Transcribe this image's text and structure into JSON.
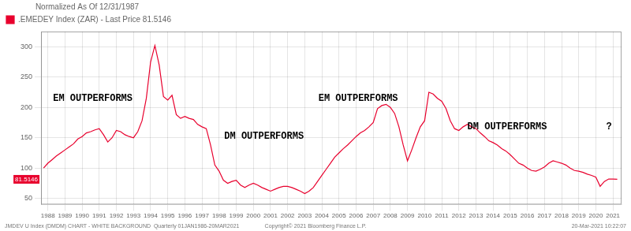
{
  "chart_data": {
    "type": "line",
    "title": "Normalized As Of 12/31/1987",
    "x": [
      1987.75,
      1988.0,
      1988.25,
      1988.5,
      1988.75,
      1989.0,
      1989.25,
      1989.5,
      1989.75,
      1990.0,
      1990.25,
      1990.5,
      1990.75,
      1991.0,
      1991.25,
      1991.5,
      1991.75,
      1992.0,
      1992.25,
      1992.5,
      1992.75,
      1993.0,
      1993.25,
      1993.5,
      1993.75,
      1994.0,
      1994.25,
      1994.5,
      1994.75,
      1995.0,
      1995.25,
      1995.5,
      1995.75,
      1996.0,
      1996.25,
      1996.5,
      1996.75,
      1997.0,
      1997.25,
      1997.5,
      1997.75,
      1998.0,
      1998.25,
      1998.5,
      1998.75,
      1999.0,
      1999.25,
      1999.5,
      1999.75,
      2000.0,
      2000.25,
      2000.5,
      2000.75,
      2001.0,
      2001.25,
      2001.5,
      2001.75,
      2002.0,
      2002.25,
      2002.5,
      2002.75,
      2003.0,
      2003.25,
      2003.5,
      2003.75,
      2004.0,
      2004.25,
      2004.5,
      2004.75,
      2005.0,
      2005.25,
      2005.5,
      2005.75,
      2006.0,
      2006.25,
      2006.5,
      2006.75,
      2007.0,
      2007.25,
      2007.5,
      2007.75,
      2008.0,
      2008.25,
      2008.5,
      2008.75,
      2009.0,
      2009.25,
      2009.5,
      2009.75,
      2010.0,
      2010.25,
      2010.5,
      2010.75,
      2011.0,
      2011.25,
      2011.5,
      2011.75,
      2012.0,
      2012.25,
      2012.5,
      2012.75,
      2013.0,
      2013.25,
      2013.5,
      2013.75,
      2014.0,
      2014.25,
      2014.5,
      2014.75,
      2015.0,
      2015.25,
      2015.5,
      2015.75,
      2016.0,
      2016.25,
      2016.5,
      2016.75,
      2017.0,
      2017.25,
      2017.5,
      2017.75,
      2018.0,
      2018.25,
      2018.5,
      2018.75,
      2019.0,
      2019.25,
      2019.5,
      2019.75,
      2020.0,
      2020.25,
      2020.5,
      2020.75,
      2021.0,
      2021.25
    ],
    "series": [
      {
        "name": ".EMEDEY Index (ZAR) - Last Price 81.5146",
        "color": "#e8002d",
        "values": [
          100,
          108,
          114,
          120,
          125,
          130,
          135,
          140,
          148,
          152,
          158,
          160,
          163,
          165,
          155,
          143,
          150,
          162,
          160,
          155,
          152,
          150,
          160,
          178,
          215,
          275,
          302,
          270,
          218,
          212,
          220,
          188,
          182,
          185,
          182,
          180,
          172,
          168,
          165,
          138,
          105,
          95,
          80,
          75,
          78,
          80,
          72,
          68,
          72,
          75,
          72,
          68,
          65,
          62,
          65,
          68,
          70,
          70,
          68,
          65,
          62,
          58,
          62,
          68,
          78,
          88,
          98,
          108,
          118,
          125,
          132,
          138,
          145,
          152,
          158,
          162,
          168,
          175,
          198,
          203,
          205,
          200,
          190,
          168,
          138,
          112,
          130,
          150,
          168,
          178,
          225,
          222,
          215,
          210,
          198,
          178,
          165,
          162,
          168,
          172,
          168,
          165,
          158,
          152,
          145,
          142,
          138,
          132,
          128,
          122,
          115,
          108,
          105,
          100,
          96,
          95,
          98,
          102,
          108,
          112,
          110,
          108,
          105,
          100,
          96,
          95,
          93,
          90,
          88,
          85,
          70,
          78,
          82,
          82,
          81.5
        ]
      }
    ],
    "last_price": {
      "text": "81.5146",
      "y": 81.5
    },
    "annotations": [
      {
        "text": "EM OUTPERFORMS",
        "x": 1988.3,
        "y": 215
      },
      {
        "text": "DM OUTPERFORMS",
        "x": 1998.3,
        "y": 152
      },
      {
        "text": "EM OUTPERFORMS",
        "x": 2003.8,
        "y": 215
      },
      {
        "text": "DM OUTPERFORMS",
        "x": 2012.5,
        "y": 168
      },
      {
        "text": "?",
        "x": 2020.6,
        "y": 168
      }
    ],
    "footer": [
      "JMDEV U Index (DMDM) CHART - WHITE BACKGROUND  Quarterly 01JAN1986-20MAR2021",
      "Copyright© 2021 Bloomberg Finance L.P.",
      "20-Mar-2021 10:22:07"
    ],
    "xlim": [
      1987.6,
      2021.5
    ],
    "xticks": [
      1988,
      1989,
      1990,
      1991,
      1992,
      1993,
      1994,
      1995,
      1996,
      1997,
      1998,
      1999,
      2000,
      2001,
      2002,
      2003,
      2004,
      2005,
      2006,
      2007,
      2008,
      2009,
      2010,
      2011,
      2012,
      2013,
      2014,
      2015,
      2016,
      2017,
      2018,
      2019,
      2020,
      2021
    ],
    "ylim": [
      40,
      325
    ],
    "yticks": [
      50,
      100,
      150,
      200,
      250,
      300
    ],
    "grid": true,
    "legend": "top-left"
  }
}
